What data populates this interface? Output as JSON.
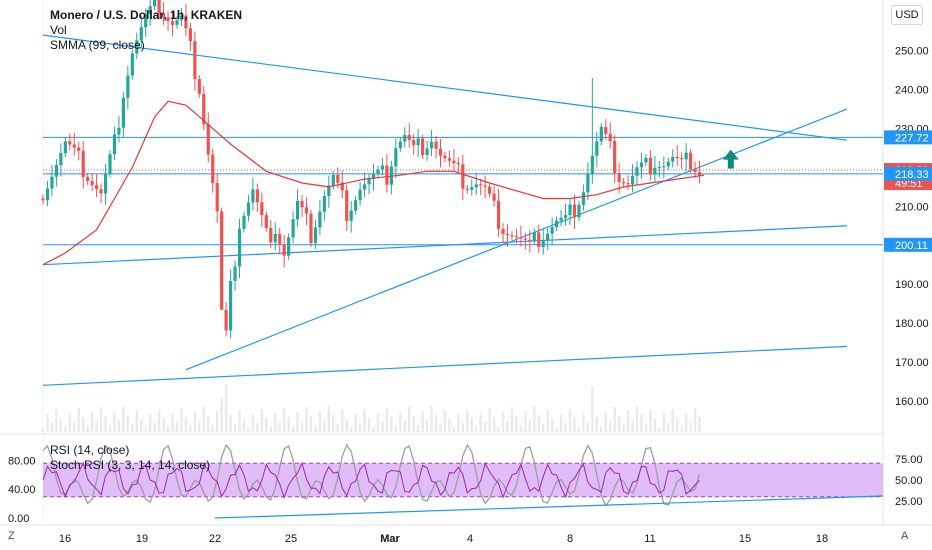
{
  "header": {
    "title": "Monero / U.S. Dollar, 1h, KRAKEN",
    "vol_label": "Vol",
    "smma_label": "SMMA (99, close)",
    "currency": "USD"
  },
  "bottom_left": "Z",
  "bottom_right": "A",
  "colors": {
    "up": "#26a69a",
    "down": "#ef5350",
    "smma": "#e53935",
    "trendline": "#2196f3",
    "rsi_fill": "#d6a6f7",
    "rsi_line": "#9c27b0",
    "stoch_line": "#9e9e9e",
    "arrow": "#0f8a7d"
  },
  "chart_data": [
    {
      "type": "candlestick",
      "title": "Monero / U.S. Dollar, 1h, KRAKEN",
      "y_ticks": [
        "250.00",
        "240.00",
        "230.00",
        "210.00",
        "190.00",
        "180.00",
        "170.00",
        "160.00"
      ],
      "x_ticks": [
        "16",
        "19",
        "22",
        "25",
        "Mar",
        "4",
        "8",
        "11",
        "15",
        "18"
      ],
      "ylim": [
        152,
        262
      ],
      "y_axis": "right",
      "price_labels": [
        {
          "value": 227.72,
          "text": "227.72",
          "kind": "line"
        },
        {
          "value": 219.33,
          "text": "219.33",
          "kind": "last"
        },
        {
          "value": 217,
          "text": "49:51",
          "kind": "countdown"
        },
        {
          "value": 218.33,
          "text": "218.33",
          "kind": "line"
        },
        {
          "value": 200.11,
          "text": "200.11",
          "kind": "line"
        }
      ],
      "price_path": [
        [
          0,
          212
        ],
        [
          6,
          226
        ],
        [
          10,
          220
        ],
        [
          14,
          213
        ],
        [
          17,
          226
        ],
        [
          19,
          240
        ],
        [
          21,
          250
        ],
        [
          24,
          258
        ],
        [
          27,
          262
        ],
        [
          30,
          257
        ],
        [
          32,
          258
        ],
        [
          34,
          250
        ],
        [
          36,
          241
        ],
        [
          38,
          224
        ],
        [
          40,
          208
        ],
        [
          41,
          182
        ],
        [
          42,
          176
        ],
        [
          43,
          188
        ],
        [
          45,
          206
        ],
        [
          48,
          214
        ],
        [
          51,
          202
        ],
        [
          53,
          205
        ],
        [
          55,
          198
        ],
        [
          58,
          210
        ],
        [
          61,
          203
        ],
        [
          64,
          213
        ],
        [
          66,
          217
        ],
        [
          69,
          209
        ],
        [
          72,
          215
        ],
        [
          75,
          217
        ],
        [
          78,
          218
        ],
        [
          80,
          226
        ],
        [
          82,
          228
        ],
        [
          84,
          224
        ],
        [
          86,
          226
        ],
        [
          88,
          228
        ],
        [
          90,
          223
        ],
        [
          93,
          219
        ],
        [
          96,
          216
        ],
        [
          98,
          216
        ],
        [
          100,
          214
        ],
        [
          102,
          209
        ],
        [
          104,
          205
        ],
        [
          106,
          203
        ],
        [
          108,
          201
        ],
        [
          110,
          199
        ],
        [
          112,
          202
        ],
        [
          114,
          204
        ],
        [
          116,
          206
        ],
        [
          118,
          206
        ],
        [
          120,
          210
        ],
        [
          122,
          215
        ],
        [
          124,
          223
        ],
        [
          126,
          229
        ],
        [
          128,
          224
        ],
        [
          130,
          218
        ],
        [
          132,
          216
        ],
        [
          134,
          219
        ],
        [
          136,
          220
        ],
        [
          138,
          222
        ],
        [
          140,
          221
        ],
        [
          142,
          222
        ],
        [
          144,
          220
        ],
        [
          146,
          222
        ],
        [
          148,
          219
        ]
      ],
      "candles_count": 148,
      "x_range": [
        0,
        148
      ],
      "spike_high": {
        "x": 123,
        "value": 243
      },
      "smma_series": [
        [
          0,
          195
        ],
        [
          5,
          198
        ],
        [
          12,
          204
        ],
        [
          20,
          220
        ],
        [
          25,
          233
        ],
        [
          28,
          237
        ],
        [
          32,
          236
        ],
        [
          36,
          232
        ],
        [
          42,
          226
        ],
        [
          50,
          219
        ],
        [
          58,
          216
        ],
        [
          64,
          215
        ],
        [
          72,
          217
        ],
        [
          80,
          218
        ],
        [
          86,
          219
        ],
        [
          92,
          219
        ],
        [
          100,
          216
        ],
        [
          106,
          214
        ],
        [
          112,
          212
        ],
        [
          118,
          212
        ],
        [
          124,
          213
        ],
        [
          130,
          215
        ],
        [
          136,
          216
        ],
        [
          142,
          217
        ],
        [
          148,
          218
        ]
      ],
      "horizontal_lines": [
        227.72,
        218.33,
        200.11
      ],
      "trend_lines": [
        {
          "from": [
            0,
            254
          ],
          "to": [
            180,
            227
          ]
        },
        {
          "from": [
            32,
            168
          ],
          "to": [
            180,
            235
          ]
        },
        {
          "from": [
            0,
            195
          ],
          "to": [
            180,
            205
          ]
        },
        {
          "from": [
            0,
            164
          ],
          "to": [
            180,
            174
          ]
        }
      ],
      "arrow": {
        "x": 154,
        "value": 222,
        "direction": "up"
      },
      "volume": "low bars along bottom"
    },
    {
      "type": "line",
      "series": [
        {
          "name": "RSI (14, close)"
        },
        {
          "name": "Stoch RSI (3, 3, 14, 14, close)"
        }
      ],
      "left_ticks": [
        "80.00",
        "40.00",
        "0.00"
      ],
      "right_ticks": [
        "75.00",
        "50.00",
        "25.00"
      ],
      "band": [
        30,
        70
      ]
    }
  ]
}
